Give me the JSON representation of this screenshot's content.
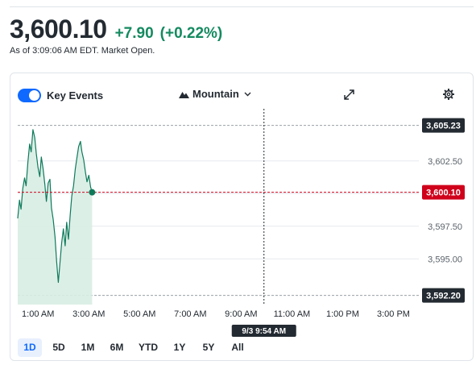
{
  "quote": {
    "price": "3,600.10",
    "change": "+7.90",
    "change_pct": "(+0.22%)",
    "as_of": "As of 3:09:06 AM EDT. Market Open."
  },
  "controls": {
    "key_events_label": "Key Events",
    "key_events_on": true,
    "chart_type_label": "Mountain",
    "icons": [
      "mountain-icon",
      "chevron-down-icon",
      "expand-icon",
      "gear-icon"
    ]
  },
  "ranges": {
    "items": [
      "1D",
      "5D",
      "1M",
      "6M",
      "YTD",
      "1Y",
      "5Y",
      "All"
    ],
    "active": "1D"
  },
  "colors": {
    "line": "#0e7a5a",
    "fill": "#d8ede4",
    "positive": "#148a60",
    "current_badge": "#d0021b",
    "badge_dark": "#232a31",
    "accent": "#0f69ff"
  },
  "chart_data": {
    "type": "area",
    "x_tick_labels": [
      "1:00 AM",
      "3:00 AM",
      "5:00 AM",
      "7:00 AM",
      "9:00 AM",
      "11:00 AM",
      "1:00 PM",
      "3:00 PM"
    ],
    "y_tick_labels": [
      "3,602.50",
      "3,597.50",
      "3,595.00"
    ],
    "ylim": [
      3591.5,
      3606.5
    ],
    "y_ticks": [
      3602.5,
      3600,
      3597.5,
      3595
    ],
    "x_range_hours": [
      0.2,
      16.0
    ],
    "high": {
      "value": 3605.23,
      "label": "3,605.23"
    },
    "low": {
      "value": 3592.2,
      "label": "3,592.20"
    },
    "current": {
      "value": 3600.1,
      "label": "3,600.10"
    },
    "crosshair": {
      "x_hour": 9.9,
      "label": "9/3 9:54 AM"
    },
    "series": [
      {
        "x": [
          0.2,
          0.27,
          0.33,
          0.4,
          0.47,
          0.53,
          0.6,
          0.67,
          0.73,
          0.8,
          0.87,
          0.93,
          1.0,
          1.07,
          1.13,
          1.2,
          1.27,
          1.33,
          1.4,
          1.47,
          1.53,
          1.6,
          1.67,
          1.73,
          1.8,
          1.87,
          1.93,
          2.0,
          2.07,
          2.13,
          2.2,
          2.27,
          2.33,
          2.4,
          2.47,
          2.53,
          2.6,
          2.67,
          2.73,
          2.8,
          2.87,
          2.93,
          3.0,
          3.07,
          3.13
        ],
        "values": [
          3598.1,
          3599.5,
          3598.8,
          3600.4,
          3601.2,
          3600.6,
          3602.4,
          3603.8,
          3603.2,
          3604.9,
          3604.3,
          3603.1,
          3602.0,
          3601.3,
          3602.8,
          3601.9,
          3600.7,
          3599.4,
          3600.8,
          3601.1,
          3598.9,
          3598.0,
          3596.7,
          3594.9,
          3593.2,
          3594.8,
          3596.2,
          3597.3,
          3596.0,
          3597.8,
          3596.5,
          3598.4,
          3599.8,
          3600.6,
          3601.9,
          3602.7,
          3603.6,
          3604.0,
          3603.2,
          3602.6,
          3601.6,
          3600.9,
          3601.4,
          3600.5,
          3600.1
        ]
      }
    ]
  }
}
